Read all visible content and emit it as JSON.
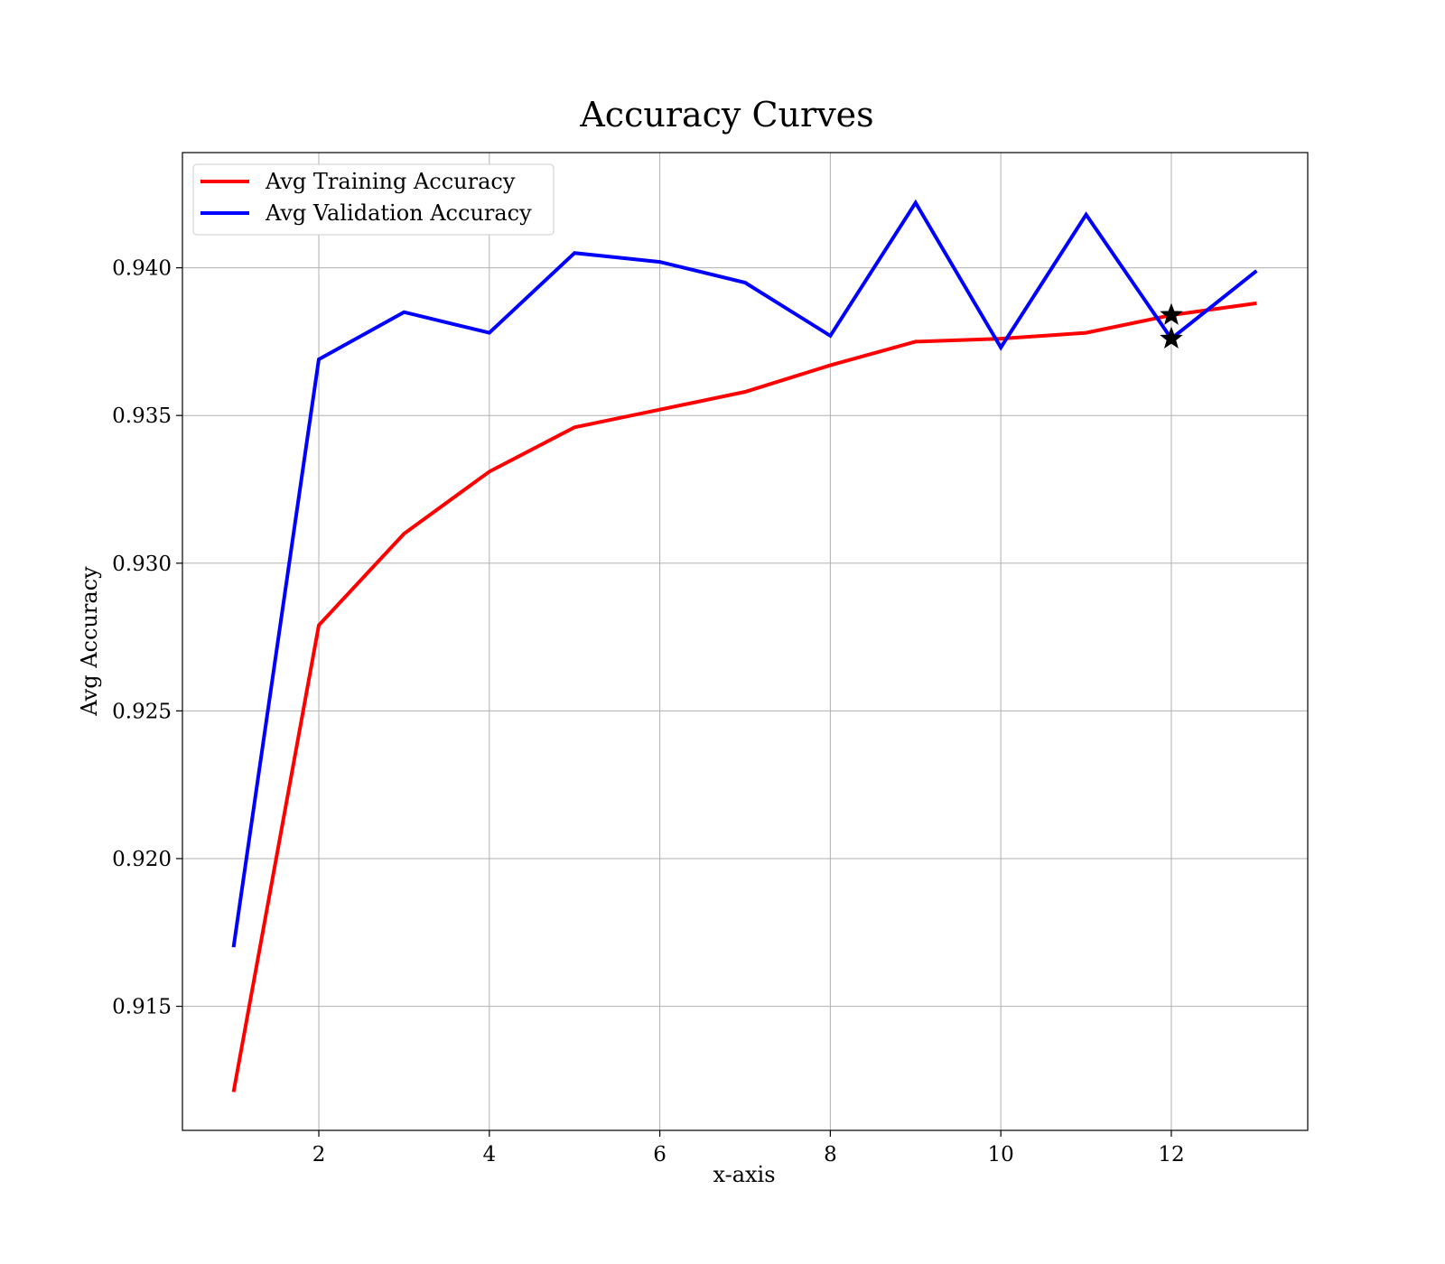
{
  "chart_data": {
    "type": "line",
    "title": "Accuracy Curves",
    "xlabel": "x-axis",
    "ylabel": "Avg Accuracy",
    "xlim": [
      0.4,
      13.6
    ],
    "ylim": [
      0.9108,
      0.9439
    ],
    "xticks": [
      2,
      4,
      6,
      8,
      10,
      12
    ],
    "yticks": [
      0.915,
      0.92,
      0.925,
      0.93,
      0.935,
      0.94
    ],
    "ytick_labels": [
      "0.915",
      "0.920",
      "0.925",
      "0.930",
      "0.935",
      "0.940"
    ],
    "grid": true,
    "legend_position": "top-left",
    "x": [
      1,
      2,
      3,
      4,
      5,
      6,
      7,
      8,
      9,
      10,
      11,
      12,
      13
    ],
    "series": [
      {
        "name": "Avg Training Accuracy",
        "color": "#ff0000",
        "values": [
          0.9121,
          0.9279,
          0.931,
          0.9331,
          0.9346,
          0.9352,
          0.9358,
          0.9367,
          0.9375,
          0.9376,
          0.9378,
          0.9384,
          0.9388
        ]
      },
      {
        "name": "Avg Validation Accuracy",
        "color": "#0000ff",
        "values": [
          0.917,
          0.9369,
          0.9385,
          0.9378,
          0.9405,
          0.9402,
          0.9395,
          0.9377,
          0.9422,
          0.9373,
          0.9418,
          0.9376,
          0.9399
        ]
      }
    ],
    "markers": [
      {
        "x": 12,
        "y": 0.9384,
        "shape": "star",
        "color": "#000000"
      },
      {
        "x": 12,
        "y": 0.9376,
        "shape": "star",
        "color": "#000000"
      }
    ]
  }
}
